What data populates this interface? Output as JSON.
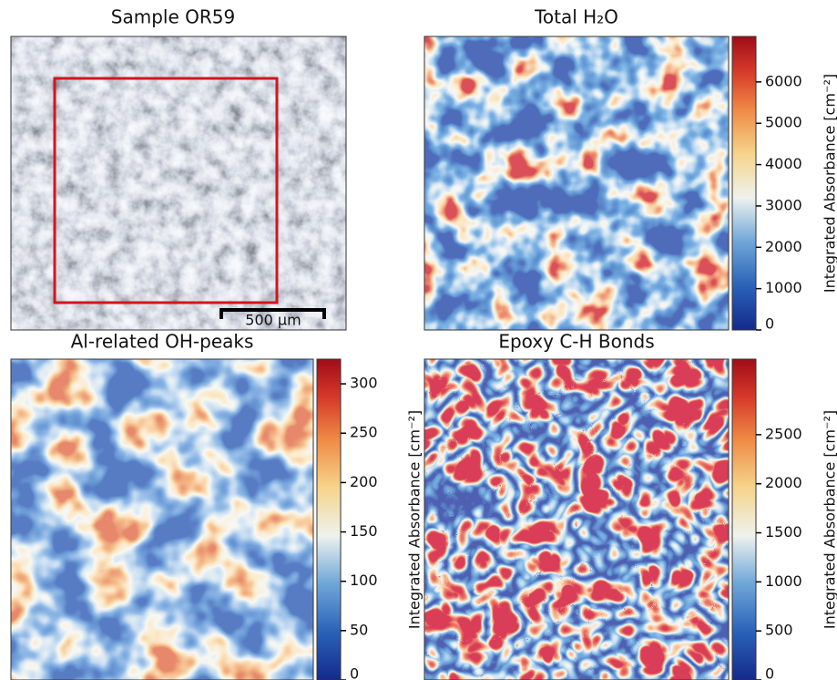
{
  "panels": [
    {
      "title": "Sample OR59",
      "scale_bar": "500 µm"
    },
    {
      "title": "Total H₂O",
      "colorbar": {
        "label": "Integrated Absorbance [cm⁻²]",
        "lim": [
          0,
          7100
        ],
        "ticks": [
          0,
          1000,
          2000,
          3000,
          4000,
          5000,
          6000
        ]
      }
    },
    {
      "title": "Al-related OH-peaks",
      "colorbar": {
        "label": "Integrated Absorbance [cm⁻²]",
        "lim": [
          0,
          325
        ],
        "ticks": [
          0,
          50,
          100,
          150,
          200,
          250,
          300
        ]
      }
    },
    {
      "title": "Epoxy C-H Bonds",
      "colorbar": {
        "label": "Integrated Absorbance [cm⁻²]",
        "lim": [
          0,
          3270
        ],
        "ticks": [
          0,
          500,
          1000,
          1500,
          2000,
          2500
        ]
      }
    }
  ]
}
